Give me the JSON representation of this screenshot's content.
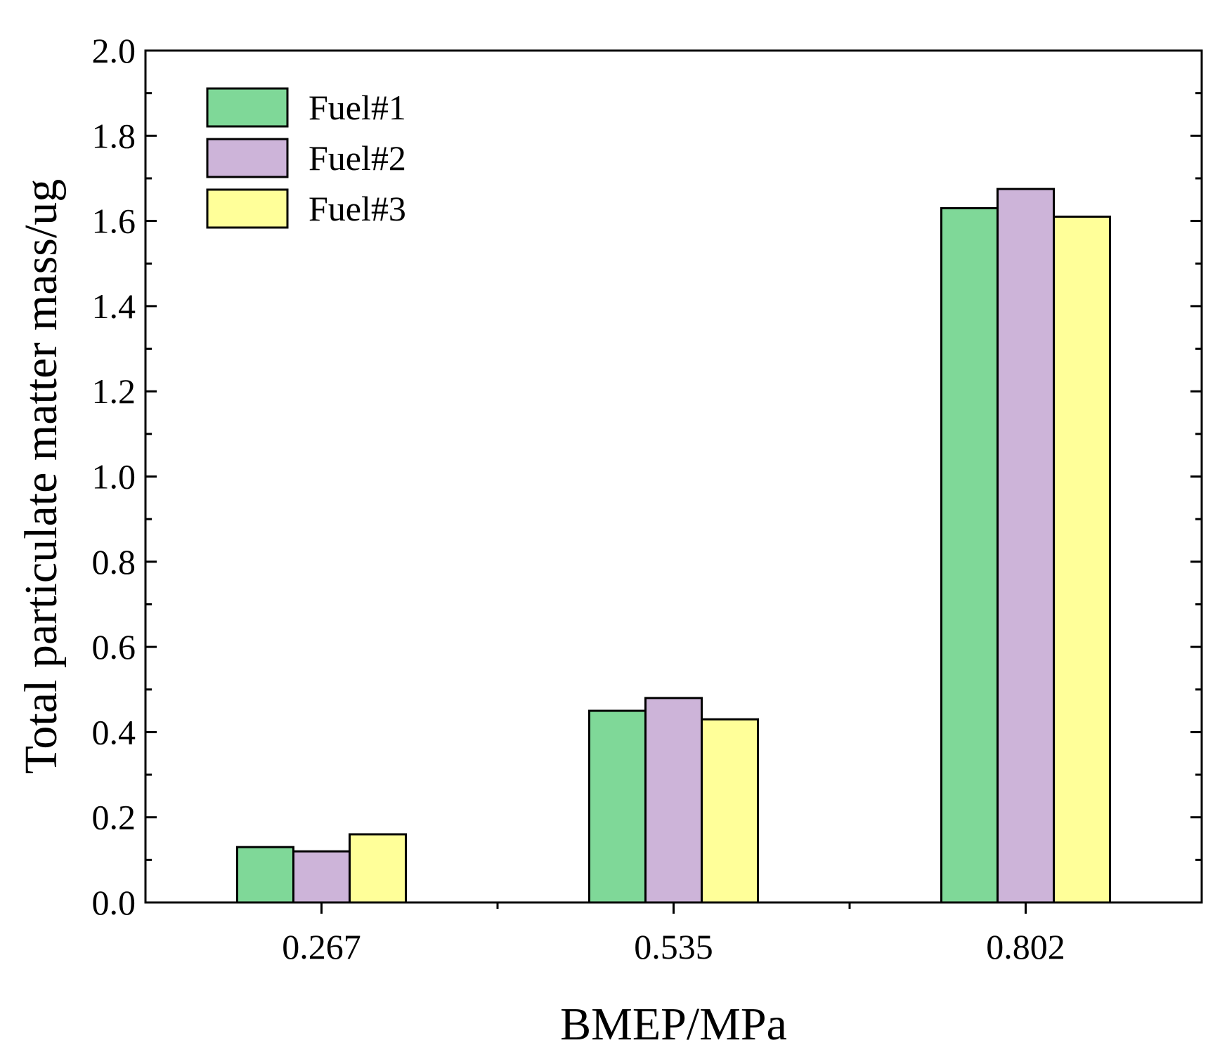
{
  "chart_data": {
    "type": "bar",
    "title": "",
    "xlabel": "BMEP/MPa",
    "ylabel": "Total particulate matter mass/ug",
    "categories": [
      "0.267",
      "0.535",
      "0.802"
    ],
    "series": [
      {
        "name": "Fuel#1",
        "color": "#7FD898",
        "values": [
          0.13,
          0.45,
          1.63
        ]
      },
      {
        "name": "Fuel#2",
        "color": "#CDB4D9",
        "values": [
          0.12,
          0.48,
          1.675
        ]
      },
      {
        "name": "Fuel#3",
        "color": "#FFFF99",
        "values": [
          0.16,
          0.43,
          1.61
        ]
      }
    ],
    "ylim": [
      0,
      2.0
    ],
    "yticks": [
      "0.0",
      "0.2",
      "0.4",
      "0.6",
      "0.8",
      "1.0",
      "1.2",
      "1.4",
      "1.6",
      "1.8",
      "2.0"
    ],
    "grid": false,
    "legend_position": "top-left"
  }
}
